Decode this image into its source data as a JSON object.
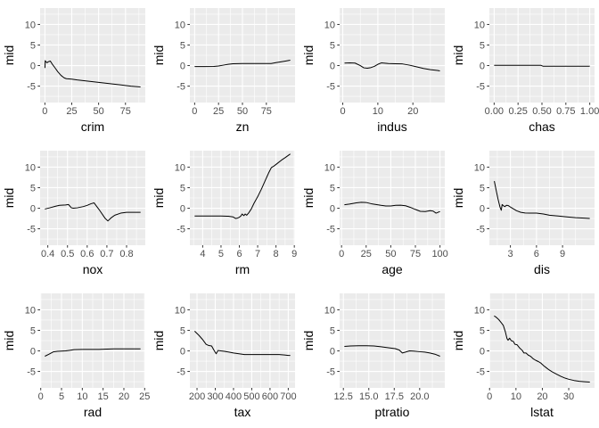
{
  "figure": {
    "ylabel": "mid",
    "background": "#FFFFFF",
    "panel_background": "#EBEBEB",
    "grid_major_color": "#FFFFFF",
    "grid_minor_color": "#FFFFFF",
    "line_color": "#000000",
    "tick_color": "#333333",
    "tick_label_color": "#4D4D4D",
    "axis_title_color": "#000000",
    "grid": true,
    "legend": "none",
    "rows": 3,
    "cols": 4,
    "ylim": [
      -9,
      14
    ],
    "y_ticks": [
      -5,
      0,
      5,
      10
    ],
    "y_tick_labels": [
      "-5",
      "0",
      "5",
      "10"
    ],
    "y_minor": [
      -7.5,
      -2.5,
      2.5,
      7.5,
      12.5
    ]
  },
  "chart_data": [
    {
      "type": "line",
      "xlabel": "crim",
      "ylabel": "mid",
      "xlim": [
        -4.45,
        93.45
      ],
      "x_ticks": [
        0,
        25,
        50,
        75
      ],
      "x_tick_labels": [
        "0",
        "25",
        "50",
        "75"
      ],
      "x_minor": [
        12.5,
        37.5,
        62.5,
        87.5
      ],
      "x": [
        0.05,
        0.3,
        1,
        2,
        3,
        5,
        7,
        9,
        12,
        15,
        18,
        20,
        25,
        30,
        40,
        50,
        60,
        70,
        80,
        89
      ],
      "y": [
        -0.6,
        1.2,
        0.9,
        0.7,
        0.9,
        1.1,
        0.3,
        -0.4,
        -1.5,
        -2.4,
        -3.0,
        -3.2,
        -3.3,
        -3.5,
        -3.8,
        -4.1,
        -4.4,
        -4.7,
        -5.0,
        -5.2
      ]
    },
    {
      "type": "line",
      "xlabel": "zn",
      "ylabel": "mid",
      "xlim": [
        -5,
        105
      ],
      "x_ticks": [
        0,
        25,
        50,
        75
      ],
      "x_tick_labels": [
        "0",
        "25",
        "50",
        "75"
      ],
      "x_minor": [
        12.5,
        37.5,
        62.5,
        87.5
      ],
      "x": [
        0,
        10,
        20,
        25,
        30,
        35,
        40,
        50,
        60,
        70,
        80,
        85,
        90,
        95,
        100
      ],
      "y": [
        -0.25,
        -0.25,
        -0.2,
        -0.1,
        0.1,
        0.3,
        0.45,
        0.5,
        0.5,
        0.5,
        0.5,
        0.7,
        0.9,
        1.1,
        1.3
      ]
    },
    {
      "type": "line",
      "xlabel": "indus",
      "ylabel": "mid",
      "xlim": [
        -0.9,
        29.1
      ],
      "x_ticks": [
        0,
        10,
        20
      ],
      "x_tick_labels": [
        "0",
        "10",
        "20"
      ],
      "x_minor": [
        5,
        15,
        25
      ],
      "x": [
        0.5,
        2,
        3.5,
        5,
        6,
        7,
        8,
        9,
        10,
        11,
        13,
        15,
        17,
        19,
        21,
        23,
        25,
        27,
        27.7
      ],
      "y": [
        0.6,
        0.65,
        0.6,
        0.0,
        -0.55,
        -0.65,
        -0.5,
        -0.2,
        0.3,
        0.65,
        0.5,
        0.45,
        0.4,
        0.1,
        -0.3,
        -0.7,
        -1.0,
        -1.2,
        -1.3
      ]
    },
    {
      "type": "line",
      "xlabel": "chas",
      "ylabel": "mid",
      "xlim": [
        -0.05,
        1.05
      ],
      "x_ticks": [
        0,
        0.25,
        0.5,
        0.75,
        1
      ],
      "x_tick_labels": [
        "0.00",
        "0.25",
        "0.50",
        "0.75",
        "1.00"
      ],
      "x_minor": [
        0.125,
        0.375,
        0.625,
        0.875
      ],
      "x": [
        0,
        0.49,
        0.51,
        1
      ],
      "y": [
        0.05,
        0.05,
        -0.15,
        -0.15
      ]
    },
    {
      "type": "line",
      "xlabel": "nox",
      "ylabel": "mid",
      "xlim": [
        0.361,
        0.895
      ],
      "x_ticks": [
        0.4,
        0.5,
        0.6,
        0.7,
        0.8
      ],
      "x_tick_labels": [
        "0.4",
        "0.5",
        "0.6",
        "0.7",
        "0.8"
      ],
      "x_minor": [
        0.45,
        0.55,
        0.65,
        0.75,
        0.85
      ],
      "x": [
        0.385,
        0.41,
        0.44,
        0.46,
        0.49,
        0.505,
        0.52,
        0.53,
        0.55,
        0.58,
        0.6,
        0.62,
        0.635,
        0.66,
        0.69,
        0.705,
        0.72,
        0.74,
        0.77,
        0.8,
        0.84,
        0.871
      ],
      "y": [
        -0.2,
        0.1,
        0.5,
        0.7,
        0.8,
        0.9,
        0.1,
        0.0,
        0.1,
        0.4,
        0.7,
        1.1,
        1.3,
        -0.3,
        -2.4,
        -3.1,
        -2.4,
        -1.7,
        -1.2,
        -1.0,
        -1.0,
        -1.0
      ]
    },
    {
      "type": "line",
      "xlabel": "rm",
      "ylabel": "mid",
      "xlim": [
        3.3,
        9.04
      ],
      "x_ticks": [
        4,
        5,
        6,
        7,
        8,
        9
      ],
      "x_tick_labels": [
        "4",
        "5",
        "6",
        "7",
        "8",
        "9"
      ],
      "x_minor": [
        3.5,
        4.5,
        5.5,
        6.5,
        7.5,
        8.5
      ],
      "x": [
        3.56,
        4.0,
        4.5,
        5.0,
        5.4,
        5.65,
        5.8,
        5.9,
        6.0,
        6.1,
        6.15,
        6.25,
        6.32,
        6.4,
        6.5,
        6.65,
        6.8,
        7.0,
        7.2,
        7.4,
        7.6,
        7.75,
        7.9,
        8.1,
        8.3,
        8.5,
        8.78
      ],
      "y": [
        -1.9,
        -1.9,
        -1.9,
        -1.9,
        -1.95,
        -2.1,
        -2.5,
        -2.4,
        -2.2,
        -1.8,
        -1.4,
        -1.8,
        -1.4,
        -1.7,
        -1.2,
        -0.2,
        1.2,
        2.8,
        4.6,
        6.6,
        8.6,
        9.9,
        10.3,
        11.0,
        11.7,
        12.3,
        13.2
      ]
    },
    {
      "type": "line",
      "xlabel": "age",
      "ylabel": "mid",
      "xlim": [
        -1.96,
        104.86
      ],
      "x_ticks": [
        0,
        25,
        50,
        75,
        100
      ],
      "x_tick_labels": [
        "0",
        "25",
        "50",
        "75",
        "100"
      ],
      "x_minor": [
        12.5,
        37.5,
        62.5,
        87.5
      ],
      "x": [
        2.9,
        8,
        15,
        20,
        25,
        30,
        35,
        40,
        45,
        50,
        55,
        60,
        65,
        70,
        75,
        80,
        85,
        90,
        93,
        96,
        100
      ],
      "y": [
        0.85,
        1.0,
        1.3,
        1.45,
        1.4,
        1.1,
        0.9,
        0.7,
        0.55,
        0.55,
        0.7,
        0.75,
        0.6,
        0.2,
        -0.3,
        -0.75,
        -0.8,
        -0.6,
        -0.7,
        -1.2,
        -0.8
      ]
    },
    {
      "type": "line",
      "xlabel": "dis",
      "ylabel": "mid",
      "xlim": [
        0.58,
        12.68
      ],
      "x_ticks": [
        3,
        6,
        9
      ],
      "x_tick_labels": [
        "3",
        "6",
        "9"
      ],
      "x_minor": [
        1.5,
        4.5,
        7.5,
        10.5
      ],
      "x": [
        1.15,
        1.35,
        1.6,
        1.8,
        1.95,
        2.05,
        2.2,
        2.35,
        2.55,
        2.75,
        3.0,
        3.3,
        3.7,
        4.2,
        4.7,
        5.2,
        6.0,
        6.8,
        7.5,
        8.5,
        9.5,
        10.5,
        11.5,
        12.13
      ],
      "y": [
        6.6,
        4.5,
        2.0,
        0.3,
        -0.5,
        0.9,
        0.6,
        0.4,
        0.7,
        0.65,
        0.3,
        -0.1,
        -0.6,
        -1.0,
        -1.15,
        -1.2,
        -1.2,
        -1.4,
        -1.7,
        -1.9,
        -2.1,
        -2.3,
        -2.4,
        -2.5
      ]
    },
    {
      "type": "line",
      "xlabel": "rad",
      "ylabel": "mid",
      "xlim": [
        -0.15,
        25.15
      ],
      "x_ticks": [
        0,
        5,
        10,
        15,
        20,
        25
      ],
      "x_tick_labels": [
        "0",
        "5",
        "10",
        "15",
        "20",
        "25"
      ],
      "x_minor": [
        2.5,
        7.5,
        12.5,
        17.5,
        22.5
      ],
      "x": [
        1,
        2,
        3,
        4,
        5,
        6,
        7,
        8,
        10,
        12,
        14,
        16,
        18,
        20,
        22,
        24
      ],
      "y": [
        -1.3,
        -0.8,
        -0.25,
        -0.1,
        -0.05,
        0.0,
        0.15,
        0.3,
        0.35,
        0.35,
        0.35,
        0.45,
        0.5,
        0.5,
        0.5,
        0.5
      ]
    },
    {
      "type": "line",
      "xlabel": "tax",
      "ylabel": "mid",
      "xlim": [
        160.8,
        737.2
      ],
      "x_ticks": [
        200,
        300,
        400,
        500,
        600,
        700
      ],
      "x_tick_labels": [
        "200",
        "300",
        "400",
        "500",
        "600",
        "700"
      ],
      "x_minor": [
        250,
        350,
        450,
        550,
        650
      ],
      "x": [
        187,
        210,
        230,
        250,
        265,
        280,
        295,
        305,
        315,
        330,
        350,
        375,
        400,
        430,
        460,
        500,
        550,
        600,
        650,
        680,
        700,
        711
      ],
      "y": [
        4.8,
        3.8,
        2.8,
        1.6,
        1.3,
        1.2,
        0.0,
        -0.7,
        0.1,
        0.0,
        -0.1,
        -0.3,
        -0.5,
        -0.7,
        -0.9,
        -0.9,
        -0.9,
        -0.9,
        -0.9,
        -1.0,
        -1.1,
        -1.1
      ]
    },
    {
      "type": "line",
      "xlabel": "ptratio",
      "ylabel": "mid",
      "xlim": [
        12.13,
        22.47
      ],
      "x_ticks": [
        12.5,
        15,
        17.5,
        20
      ],
      "x_tick_labels": [
        "12.5",
        "15.0",
        "17.5",
        "20.0"
      ],
      "x_minor": [
        13.75,
        16.25,
        18.75,
        21.25
      ],
      "x": [
        12.6,
        13.2,
        14.0,
        14.8,
        15.5,
        16.2,
        17.0,
        17.6,
        18.0,
        18.3,
        18.6,
        19.0,
        19.4,
        20.0,
        20.5,
        21.0,
        21.5,
        22.0
      ],
      "y": [
        1.1,
        1.2,
        1.25,
        1.25,
        1.2,
        1.0,
        0.75,
        0.55,
        0.2,
        -0.5,
        -0.3,
        0.0,
        -0.05,
        -0.2,
        -0.3,
        -0.5,
        -0.8,
        -1.3
      ]
    },
    {
      "type": "line",
      "xlabel": "lstat",
      "ylabel": "mid",
      "xlim": [
        -0.08,
        39.78
      ],
      "x_ticks": [
        0,
        10,
        20,
        30
      ],
      "x_tick_labels": [
        "0",
        "10",
        "20",
        "30"
      ],
      "x_minor": [
        5,
        15,
        25,
        35
      ],
      "x": [
        1.73,
        2.5,
        3.5,
        4.5,
        5.2,
        6.0,
        6.6,
        7.0,
        7.6,
        8.2,
        9.0,
        9.6,
        10.4,
        11.4,
        12.4,
        13.0,
        13.8,
        14.6,
        15.5,
        16.5,
        17.5,
        18.5,
        19.5,
        20.5,
        21.5,
        22.5,
        24.0,
        25.5,
        27.0,
        28.5,
        30.0,
        32.0,
        34.0,
        36.0,
        38.0
      ],
      "y": [
        8.5,
        8.2,
        7.6,
        6.8,
        6.2,
        4.6,
        3.0,
        2.6,
        3.1,
        2.5,
        2.3,
        1.6,
        1.5,
        0.7,
        0.1,
        -0.5,
        -0.5,
        -1.0,
        -1.3,
        -1.9,
        -2.3,
        -2.6,
        -3.0,
        -3.6,
        -4.1,
        -4.6,
        -5.2,
        -5.7,
        -6.2,
        -6.6,
        -6.9,
        -7.2,
        -7.4,
        -7.5,
        -7.6
      ]
    }
  ]
}
